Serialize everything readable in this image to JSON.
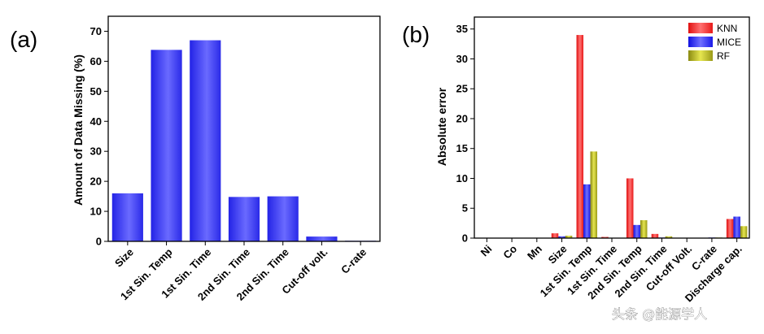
{
  "chart_data": [
    {
      "type": "bar",
      "panel_label": "(a)",
      "title": "",
      "xlabel": "",
      "ylabel": "Amount of Data Missing (%)",
      "categories": [
        "Size",
        "1st Sin. Temp",
        "1st Sin. Time",
        "2nd Sin. Time",
        "2nd Sin. Time",
        "Cut-off volt.",
        "C-rate"
      ],
      "values": [
        16,
        63.8,
        67,
        14.8,
        15,
        1.6,
        0.2
      ],
      "ylim": [
        0,
        75
      ],
      "yticks": [
        0,
        10,
        20,
        30,
        40,
        50,
        60,
        70
      ],
      "grid": false,
      "color": "#3b3bf0"
    },
    {
      "type": "bar",
      "panel_label": "(b)",
      "title": "",
      "xlabel": "",
      "ylabel": "Absolute error",
      "categories": [
        "Ni",
        "Co",
        "Mn",
        "Size",
        "1st Sin. Temp",
        "1st Sin. Time",
        "2nd Sin. Temp",
        "2nd Sin. Time",
        "Cut-off Volt.",
        "C-rate",
        "Discharge cap."
      ],
      "series": [
        {
          "name": "KNN",
          "color": "#ff2a2a",
          "values": [
            0,
            0,
            0,
            0.8,
            34,
            0.2,
            10,
            0.7,
            0,
            0,
            3.2
          ]
        },
        {
          "name": "MICE",
          "color": "#2a2aff",
          "values": [
            0,
            0,
            0,
            0.3,
            9,
            0,
            2.2,
            0.1,
            0,
            0.1,
            3.6
          ]
        },
        {
          "name": "RF",
          "color": "#b0b020",
          "values": [
            0,
            0,
            0,
            0.4,
            14.5,
            0,
            3,
            0.3,
            0,
            0.1,
            2
          ]
        }
      ],
      "ylim": [
        0,
        37
      ],
      "yticks": [
        0,
        5,
        10,
        15,
        20,
        25,
        30,
        35
      ],
      "grid": false,
      "legend": "top-right"
    }
  ],
  "watermark": "头条 @能源学人"
}
